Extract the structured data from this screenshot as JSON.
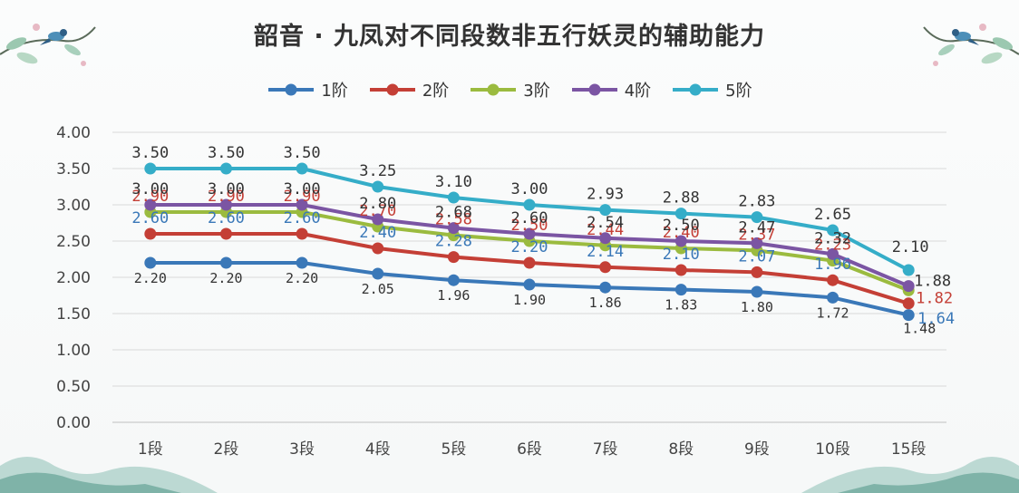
{
  "chart_data": {
    "type": "line",
    "title": "韶音 · 九凤对不同段数非五行妖灵的辅助能力",
    "xlabel": "",
    "ylabel": "",
    "categories": [
      "1段",
      "2段",
      "3段",
      "4段",
      "5段",
      "6段",
      "7段",
      "8段",
      "9段",
      "10段",
      "15段"
    ],
    "ylim": [
      0,
      4
    ],
    "yticks": [
      "0.00",
      "0.50",
      "1.00",
      "1.50",
      "2.00",
      "2.50",
      "3.00",
      "3.50",
      "4.00"
    ],
    "ytick_values": [
      0,
      0.5,
      1,
      1.5,
      2,
      2.5,
      3,
      3.5,
      4
    ],
    "grid": true,
    "legend_position": "top",
    "series": [
      {
        "name": "1阶",
        "color": "#3a78b8",
        "label_color": "#333333",
        "values": [
          2.2,
          2.2,
          2.2,
          2.05,
          1.96,
          1.9,
          1.86,
          1.83,
          1.8,
          1.72,
          1.48
        ],
        "labels": [
          "2.20",
          "2.20",
          "2.20",
          "2.05",
          "1.96",
          "1.90",
          "1.86",
          "1.83",
          "1.80",
          "1.72",
          "1.48"
        ]
      },
      {
        "name": "2阶",
        "color": "#c43f36",
        "label_color": "#3a78b8",
        "values": [
          2.6,
          2.6,
          2.6,
          2.4,
          2.28,
          2.2,
          2.14,
          2.1,
          2.07,
          1.96,
          1.64
        ],
        "labels": [
          "2.60",
          "2.60",
          "2.60",
          "2.40",
          "2.28",
          "2.20",
          "2.14",
          "2.10",
          "2.07",
          "1.96",
          "1.64"
        ]
      },
      {
        "name": "3阶",
        "color": "#9bbb3f",
        "label_color": "#c43f36",
        "values": [
          2.9,
          2.9,
          2.9,
          2.7,
          2.58,
          2.5,
          2.44,
          2.4,
          2.37,
          2.23,
          1.82
        ],
        "labels": [
          "2.90",
          "2.90",
          "2.90",
          "2.70",
          "2.58",
          "2.50",
          "2.44",
          "2.40",
          "2.37",
          "2.23",
          "1.82"
        ]
      },
      {
        "name": "4阶",
        "color": "#7b55a3",
        "label_color": "#333333",
        "values": [
          3.0,
          3.0,
          3.0,
          2.8,
          2.68,
          2.6,
          2.54,
          2.5,
          2.47,
          2.32,
          1.88
        ],
        "labels": [
          "3.00",
          "3.00",
          "3.00",
          "2.80",
          "2.68",
          "2.60",
          "2.54",
          "2.50",
          "2.47",
          "2.32",
          "1.88"
        ]
      },
      {
        "name": "5阶",
        "color": "#35adc8",
        "label_color": "#333333",
        "values": [
          3.5,
          3.5,
          3.5,
          3.25,
          3.1,
          3.0,
          2.93,
          2.88,
          2.83,
          2.65,
          2.1
        ],
        "labels": [
          "3.50",
          "3.50",
          "3.50",
          "3.25",
          "3.10",
          "3.00",
          "2.93",
          "2.88",
          "2.83",
          "2.65",
          "2.10"
        ]
      }
    ]
  }
}
